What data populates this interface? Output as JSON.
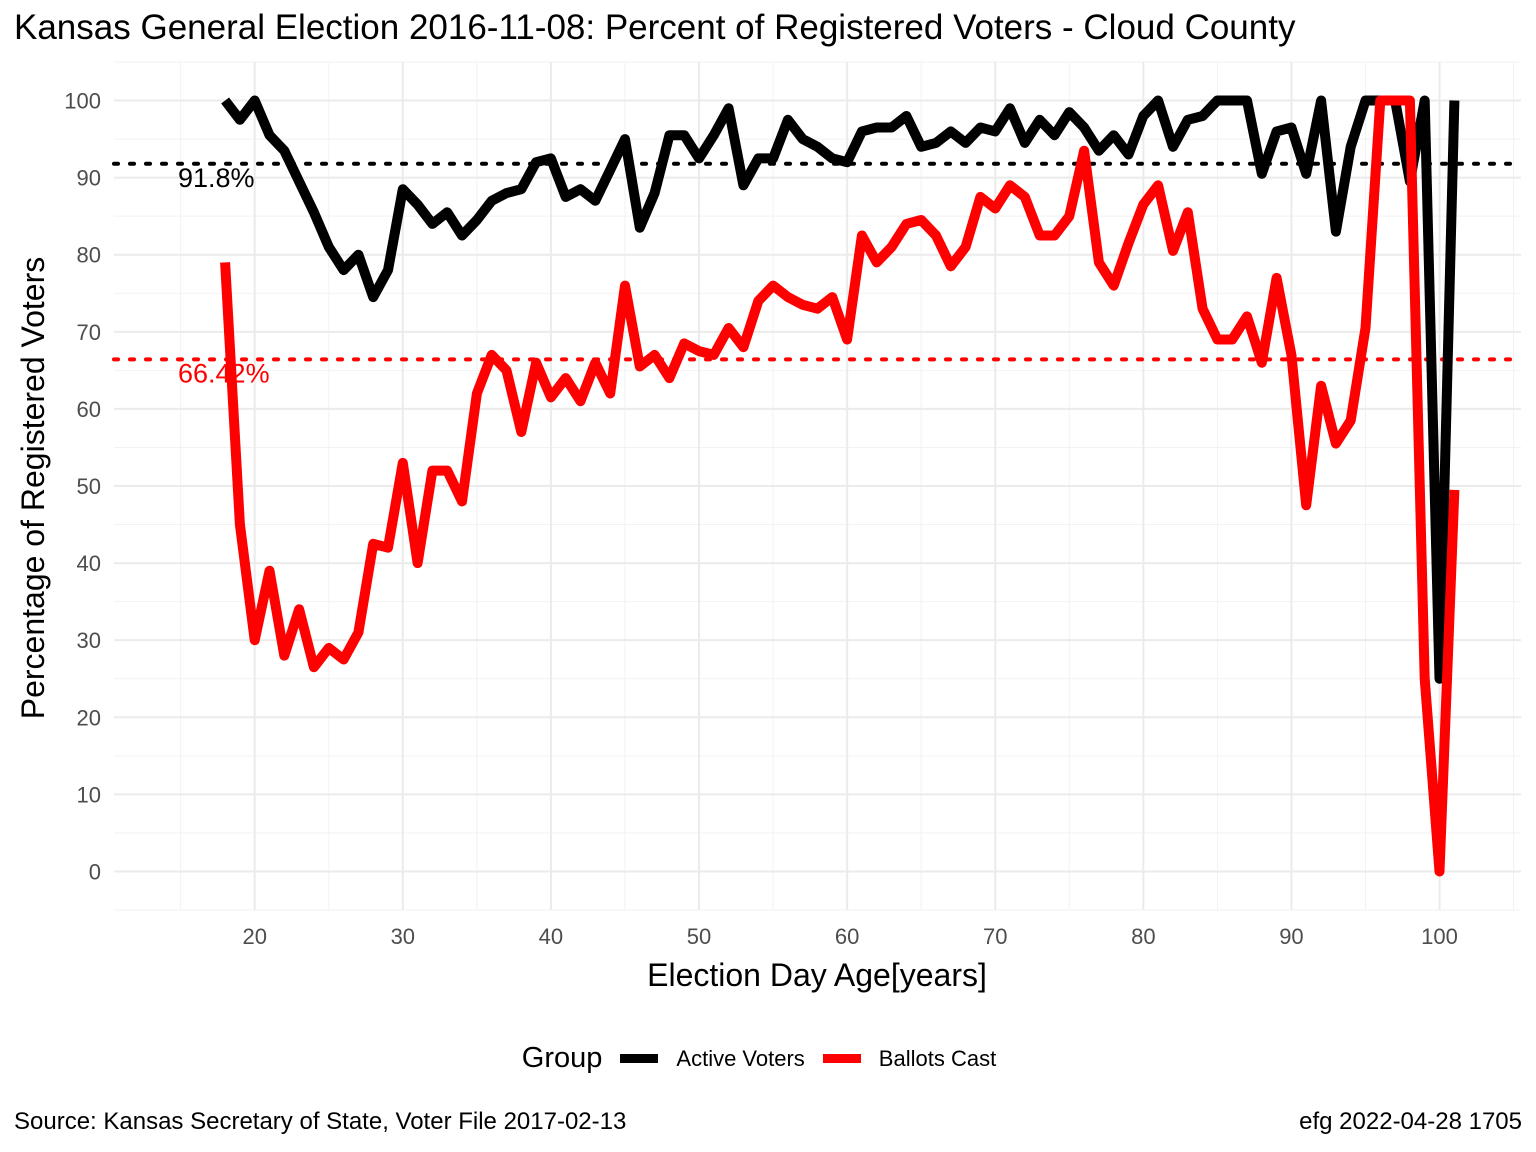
{
  "chart_data": {
    "type": "line",
    "title": "Kansas General Election 2016-11-08:  Percent of Registered Voters - Cloud County",
    "xlabel": "Election Day Age[years]",
    "ylabel": "Percentage of Registered Voters",
    "xlim": [
      10.5,
      105.5
    ],
    "ylim": [
      -5,
      105
    ],
    "x_ticks": [
      20,
      30,
      40,
      50,
      60,
      70,
      80,
      90,
      100
    ],
    "y_ticks": [
      0,
      10,
      20,
      30,
      40,
      50,
      60,
      70,
      80,
      90,
      100
    ],
    "grid": true,
    "legend_title": "Group",
    "legend_position": "bottom",
    "x": [
      18,
      19,
      20,
      21,
      22,
      23,
      24,
      25,
      26,
      27,
      28,
      29,
      30,
      31,
      32,
      33,
      34,
      35,
      36,
      37,
      38,
      39,
      40,
      41,
      42,
      43,
      44,
      45,
      46,
      47,
      48,
      49,
      50,
      51,
      52,
      53,
      54,
      55,
      56,
      57,
      58,
      59,
      60,
      61,
      62,
      63,
      64,
      65,
      66,
      67,
      68,
      69,
      70,
      71,
      72,
      73,
      74,
      75,
      76,
      77,
      78,
      79,
      80,
      81,
      82,
      83,
      84,
      85,
      86,
      87,
      88,
      89,
      90,
      91,
      92,
      93,
      94,
      95,
      96,
      97,
      98,
      99,
      100,
      101
    ],
    "series": [
      {
        "name": "Active Voters",
        "color": "#000000",
        "values": [
          100,
          97.5,
          100,
          95.5,
          93.5,
          89.5,
          85.5,
          81,
          78,
          80,
          74.5,
          78,
          88.5,
          86.5,
          84,
          85.5,
          82.5,
          84.5,
          87,
          88,
          88.5,
          92,
          92.5,
          87.5,
          88.5,
          87,
          91,
          95,
          83.5,
          88,
          95.5,
          95.5,
          92.5,
          95.5,
          99,
          89,
          92.5,
          92.5,
          97.5,
          95,
          94,
          92.5,
          92,
          96,
          96.5,
          96.5,
          98,
          94,
          94.5,
          96,
          94.5,
          96.5,
          96,
          99,
          94.5,
          97.5,
          95.5,
          98.5,
          96.5,
          93.5,
          95.5,
          93,
          98,
          100,
          94,
          97.5,
          98,
          100,
          100,
          100,
          90.5,
          96,
          96.5,
          90.5,
          100,
          83,
          94,
          100,
          100,
          100,
          89.5,
          100,
          25,
          100
        ]
      },
      {
        "name": "Ballots Cast",
        "color": "#ff0000",
        "values": [
          79,
          45,
          30,
          39,
          28,
          34,
          26.5,
          29,
          27.5,
          31,
          42.5,
          42,
          53,
          40,
          52,
          52,
          48,
          62,
          67,
          65,
          57,
          66,
          61.5,
          64,
          61,
          66,
          62,
          76,
          65.5,
          67,
          64,
          68.5,
          67.5,
          67,
          70.5,
          68,
          74,
          76,
          74.5,
          73.5,
          73,
          74.5,
          69,
          82.5,
          79,
          81,
          84,
          84.5,
          82.5,
          78.5,
          81,
          87.5,
          86,
          89,
          87.5,
          82.5,
          82.5,
          85,
          93.5,
          79,
          76,
          81.5,
          86.5,
          89,
          80.5,
          85.5,
          73,
          69,
          69,
          72,
          66,
          77,
          67,
          47.5,
          63,
          55.5,
          58.5,
          70.5,
          100,
          100,
          100,
          25,
          0,
          49.5
        ]
      }
    ],
    "reference_lines": [
      {
        "series": "Active Voters",
        "value": 91.8,
        "label": "91.8%",
        "color": "#000000"
      },
      {
        "series": "Ballots Cast",
        "value": 66.42,
        "label": "66.42%",
        "color": "#ff0000"
      }
    ]
  },
  "caption_left": "Source:  Kansas Secretary of State, Voter File  2017-02-13",
  "caption_right": "efg 2022-04-28 1705"
}
